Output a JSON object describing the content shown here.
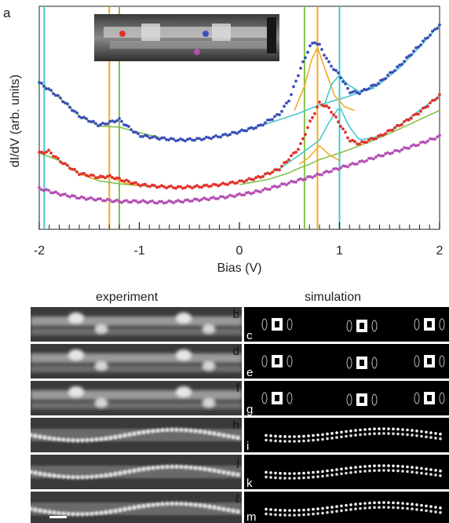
{
  "chart_data": {
    "type": "line",
    "panel_label": "a",
    "xlabel": "Bias (V)",
    "ylabel": "dI/dV (arb. units)",
    "xlim": [
      -2,
      2
    ],
    "x_ticks": [
      "-2",
      "-1",
      "0",
      "1",
      "2"
    ],
    "vertical_lines": [
      {
        "x": -1.95,
        "color": "#46c8cc"
      },
      {
        "x": -1.3,
        "color": "#f2ab28"
      },
      {
        "x": -1.2,
        "color": "#82c24a"
      },
      {
        "x": 0.65,
        "color": "#82c24a"
      },
      {
        "x": 0.78,
        "color": "#f2ab28"
      },
      {
        "x": 1.0,
        "color": "#46c8cc"
      }
    ],
    "series": [
      {
        "color": "#3a4fb8",
        "marker": "dots",
        "x": [
          -2.0,
          -1.8,
          -1.6,
          -1.4,
          -1.3,
          -1.2,
          -1.1,
          -1.0,
          -0.8,
          -0.6,
          -0.4,
          -0.2,
          0.0,
          0.2,
          0.4,
          0.5,
          0.6,
          0.7,
          0.75,
          0.8,
          0.9,
          1.0,
          1.1,
          1.2,
          1.4,
          1.6,
          1.8,
          2.0
        ],
        "y": [
          6.4,
          5.6,
          4.6,
          4.1,
          4.25,
          4.4,
          3.95,
          3.55,
          3.4,
          3.3,
          3.35,
          3.5,
          3.75,
          4.05,
          4.7,
          5.5,
          7.0,
          8.3,
          8.6,
          8.4,
          7.4,
          6.8,
          5.9,
          5.85,
          6.4,
          7.3,
          8.4,
          9.5
        ]
      },
      {
        "color": "#e3312a",
        "marker": "dots",
        "x": [
          -2.0,
          -1.9,
          -1.8,
          -1.6,
          -1.4,
          -1.3,
          -1.2,
          -1.0,
          -0.8,
          -0.6,
          -0.4,
          -0.2,
          0.0,
          0.2,
          0.4,
          0.6,
          0.7,
          0.8,
          0.9,
          1.0,
          1.1,
          1.2,
          1.4,
          1.6,
          1.8,
          2.0
        ],
        "y": [
          2.6,
          2.7,
          2.2,
          1.5,
          1.3,
          1.35,
          1.2,
          0.9,
          0.8,
          0.75,
          0.8,
          0.9,
          1.05,
          1.3,
          1.75,
          2.9,
          4.2,
          5.3,
          5.0,
          4.2,
          3.3,
          3.1,
          3.5,
          4.1,
          4.8,
          5.7
        ]
      },
      {
        "color": "#b44fb4",
        "marker": "dots",
        "x": [
          -2.0,
          -1.8,
          -1.6,
          -1.4,
          -1.2,
          -1.0,
          -0.8,
          -0.6,
          -0.4,
          -0.2,
          0.0,
          0.2,
          0.4,
          0.6,
          0.8,
          1.0,
          1.2,
          1.4,
          1.6,
          1.8,
          2.0
        ],
        "y": [
          0.7,
          0.4,
          0.2,
          0.1,
          0.0,
          0.0,
          -0.05,
          0.0,
          0.1,
          0.2,
          0.35,
          0.55,
          0.85,
          1.15,
          1.45,
          1.8,
          2.1,
          2.45,
          2.75,
          3.1,
          3.5
        ]
      }
    ],
    "fit_curves": [
      {
        "color": "#82c24a",
        "x": [
          -2.0,
          -1.8,
          -1.6,
          -1.4,
          -1.2,
          -1.0,
          -0.8
        ],
        "y": [
          6.4,
          5.6,
          4.6,
          4.05,
          4.0,
          3.7,
          3.45
        ]
      },
      {
        "color": "#82c24a",
        "x": [
          -2.0,
          -1.8,
          -1.6,
          -1.4,
          -1.2,
          -1.0,
          -0.8
        ],
        "y": [
          2.6,
          2.2,
          1.5,
          1.1,
          0.95,
          0.85,
          0.8
        ]
      },
      {
        "color": "#f2ab28",
        "x": [
          -1.6,
          -1.45,
          -1.3,
          -1.15,
          -1.0
        ],
        "y": [
          1.5,
          1.2,
          1.35,
          1.0,
          0.85
        ]
      },
      {
        "color": "#46c8cc",
        "x": [
          0.0,
          0.2,
          0.4,
          0.6,
          0.8,
          1.0,
          1.2,
          1.4,
          1.6,
          1.8,
          2.0
        ],
        "y": [
          3.75,
          4.05,
          4.4,
          4.75,
          5.2,
          5.5,
          5.85,
          6.3,
          7.2,
          8.3,
          9.5
        ]
      },
      {
        "color": "#f2ab28",
        "x": [
          0.55,
          0.65,
          0.72,
          0.78,
          0.85,
          0.95,
          1.05,
          1.15
        ],
        "y": [
          4.9,
          6.2,
          7.6,
          8.3,
          7.2,
          5.7,
          5.1,
          4.9
        ]
      },
      {
        "color": "#46c8cc",
        "x": [
          0.85,
          0.92,
          1.0,
          1.08,
          1.2,
          1.35
        ],
        "y": [
          5.2,
          6.3,
          6.8,
          6.3,
          5.9,
          6.1
        ]
      },
      {
        "color": "#82c24a",
        "x": [
          0.0,
          0.3,
          0.5,
          0.6,
          0.7,
          0.8,
          1.0,
          1.3,
          1.6,
          2.0
        ],
        "y": [
          0.9,
          1.2,
          1.55,
          1.8,
          2.0,
          2.25,
          2.6,
          3.2,
          3.9,
          4.9
        ]
      },
      {
        "color": "#46c8cc",
        "x": [
          0.2,
          0.4,
          0.6,
          0.8,
          0.9,
          1.0,
          1.1,
          1.2,
          1.4,
          1.6,
          2.0
        ],
        "y": [
          1.3,
          1.75,
          2.5,
          3.3,
          4.3,
          5.1,
          4.0,
          3.3,
          3.5,
          4.1,
          5.7
        ]
      },
      {
        "color": "#f2ab28",
        "x": [
          0.6,
          0.7,
          0.8,
          0.9,
          1.0
        ],
        "y": [
          2.0,
          2.4,
          3.0,
          2.5,
          2.2
        ]
      }
    ],
    "inset": {
      "markers": [
        {
          "color": "#e3312a"
        },
        {
          "color": "#3a4fb8"
        },
        {
          "color": "#b44fb4"
        }
      ]
    }
  },
  "image_grid": {
    "column_titles": [
      "experiment",
      "simulation"
    ],
    "rows": [
      {
        "exp_label": "b",
        "sim_label": "c"
      },
      {
        "exp_label": "d",
        "sim_label": "e"
      },
      {
        "exp_label": "f",
        "sim_label": "g"
      },
      {
        "exp_label": "h",
        "sim_label": "i"
      },
      {
        "exp_label": "j",
        "sim_label": "k"
      },
      {
        "exp_label": "ℓ",
        "sim_label": "m"
      }
    ]
  }
}
